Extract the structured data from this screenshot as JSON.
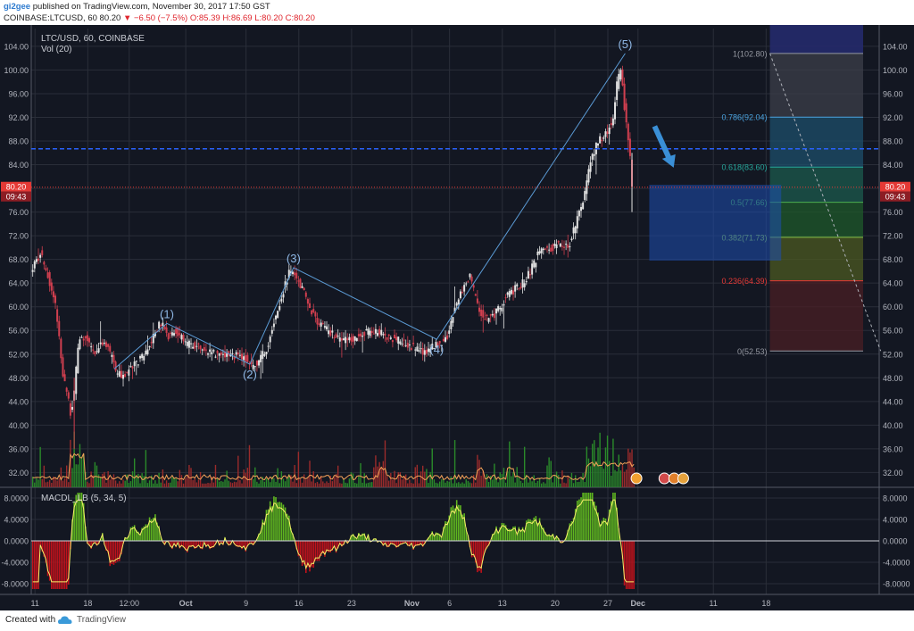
{
  "header": {
    "user": "gi2gee",
    "published": "published on TradingView.com, November 30, 2017 17:50 GST",
    "symbol": "COINBASE:LTCUSD, 60",
    "last": "80.20",
    "change": "−6.50 (−7.5%)",
    "o": "O:85.39",
    "h": "H:86.69",
    "l": "L:80.20",
    "c": "C:80.20"
  },
  "footer": {
    "created_with": "Created with",
    "brand": "TradingView"
  },
  "colors": {
    "bg": "#131722",
    "grid": "#2a2e39",
    "up": "#e3e3e3",
    "down": "#d13f4f",
    "vol_up": "#2a8a2a",
    "vol_down": "#9b2b2b",
    "wave": "#5b9bd5",
    "macd_up": "#5fb61f",
    "macd_down": "#c0121b",
    "macd_line": "#f7f06a",
    "resistance": "#2962ff",
    "price_line": "#e53935"
  },
  "chart_data": {
    "type": "candlestick",
    "title": "LTC/USD, 60, COINBASE",
    "indicator_volume": "Vol (20)",
    "indicator_macd": "MACDL_LB (5, 34, 5)",
    "x_tick_labels": [
      "11",
      "18",
      "12:00",
      "Oct",
      "9",
      "16",
      "23",
      "Nov",
      "6",
      "13",
      "20",
      "27",
      "Dec",
      "11",
      "18"
    ],
    "x_tick_days": [
      11,
      18,
      23.5,
      31,
      39,
      46,
      53,
      61,
      66,
      73,
      80,
      87,
      91,
      101,
      108
    ],
    "x_range_days": [
      10.5,
      123
    ],
    "y_ticks": [
      32,
      36,
      40,
      44,
      48,
      52,
      56,
      60,
      64,
      68,
      72,
      76,
      80,
      84,
      88,
      92,
      96,
      100,
      104
    ],
    "y_tick_labels": [
      "32.00",
      "36.00",
      "40.00",
      "44.00",
      "48.00",
      "52.00",
      "56.00",
      "60.00",
      "64.00",
      "68.00",
      "72.00",
      "76.00",
      "80.00",
      "84.00",
      "88.00",
      "92.00",
      "96.00",
      "100.00",
      "104.00"
    ],
    "ylim": [
      29.5,
      107
    ],
    "macd_ticks": [
      8,
      4,
      0,
      -4,
      -8
    ],
    "macd_tick_labels": [
      "8.0000",
      "4.0000",
      "0.0000",
      "-4.0000",
      "-8.0000"
    ],
    "macd_ylim": [
      -10,
      10
    ],
    "price_path": [
      [
        10.5,
        66
      ],
      [
        12,
        69
      ],
      [
        13,
        65
      ],
      [
        14,
        60
      ],
      [
        15,
        48
      ],
      [
        16,
        42
      ],
      [
        16.5,
        46
      ],
      [
        17,
        54
      ],
      [
        18,
        55
      ],
      [
        19,
        52
      ],
      [
        20,
        54
      ],
      [
        21,
        53
      ],
      [
        22,
        49
      ],
      [
        23,
        48
      ],
      [
        24,
        50
      ],
      [
        26,
        52
      ],
      [
        27,
        55
      ],
      [
        28,
        57.5
      ],
      [
        29,
        55
      ],
      [
        30,
        56
      ],
      [
        31,
        54
      ],
      [
        33,
        53
      ],
      [
        35,
        52
      ],
      [
        37,
        52
      ],
      [
        39,
        51.5
      ],
      [
        40,
        50
      ],
      [
        41,
        51
      ],
      [
        42,
        53
      ],
      [
        43,
        58
      ],
      [
        44,
        62
      ],
      [
        45,
        66
      ],
      [
        46,
        65
      ],
      [
        47,
        62
      ],
      [
        48,
        59
      ],
      [
        49,
        57
      ],
      [
        50,
        56
      ],
      [
        52,
        54
      ],
      [
        54,
        55
      ],
      [
        56,
        56
      ],
      [
        58,
        55
      ],
      [
        60,
        54
      ],
      [
        62,
        53
      ],
      [
        63,
        52
      ],
      [
        64,
        53.5
      ],
      [
        65,
        54
      ],
      [
        66,
        55
      ],
      [
        67,
        60
      ],
      [
        68,
        63
      ],
      [
        69,
        65
      ],
      [
        70,
        60
      ],
      [
        71,
        58
      ],
      [
        72,
        58.5
      ],
      [
        73,
        60
      ],
      [
        74,
        62
      ],
      [
        75,
        63
      ],
      [
        76,
        64
      ],
      [
        77,
        66
      ],
      [
        78,
        69
      ],
      [
        79,
        70
      ],
      [
        80,
        70
      ],
      [
        81,
        71
      ],
      [
        82,
        70
      ],
      [
        83,
        74
      ],
      [
        84,
        78
      ],
      [
        85,
        85
      ],
      [
        86,
        88
      ],
      [
        87,
        89
      ],
      [
        88,
        92
      ],
      [
        88.5,
        98
      ],
      [
        89,
        100
      ],
      [
        89.5,
        93
      ],
      [
        90,
        88
      ],
      [
        90.5,
        80.2
      ]
    ],
    "wave_labels": [
      {
        "label": "(1)",
        "x": 28.5,
        "y": 57.2
      },
      {
        "label": "(2)",
        "x": 39.5,
        "y": 50.3
      },
      {
        "label": "(3)",
        "x": 45.3,
        "y": 66.6
      },
      {
        "label": "(4)",
        "x": 64.3,
        "y": 54.5
      },
      {
        "label": "(5)",
        "x": 89.3,
        "y": 102.8
      }
    ],
    "wave_points": [
      [
        21.5,
        49.5
      ],
      [
        28.5,
        57.2
      ],
      [
        39.5,
        50.3
      ],
      [
        45.3,
        66.6
      ],
      [
        64.3,
        54.5
      ],
      [
        89.3,
        102.8
      ]
    ],
    "fib_levels": [
      {
        "ratio": "1",
        "value": 102.8,
        "label": "1(102.80)",
        "color": "#9598a1"
      },
      {
        "ratio": "0.786",
        "value": 92.04,
        "label": "0.786(92.04)",
        "color": "#4aa3df"
      },
      {
        "ratio": "0.618",
        "value": 83.6,
        "label": "0.618(83.60)",
        "color": "#26a69a"
      },
      {
        "ratio": "0.5",
        "value": 77.66,
        "label": "0.5(77.66)",
        "color": "#4caf50"
      },
      {
        "ratio": "0.382",
        "value": 71.73,
        "label": "0.382(71.73)",
        "color": "#8bc34a"
      },
      {
        "ratio": "0.236",
        "value": 64.39,
        "label": "0.236(64.39)",
        "color": "#e53935"
      },
      {
        "ratio": "0",
        "value": 52.53,
        "label": "0(52.53)",
        "color": "#9598a1"
      }
    ],
    "fib_x_days": [
      108.5,
      124.5
    ],
    "fib_trend": [
      [
        108.5,
        102.8
      ],
      [
        123.2,
        52.53
      ]
    ],
    "target_box": {
      "x_days": [
        92.5,
        110
      ],
      "y": [
        67.8,
        80.6
      ]
    },
    "resistance_level": 86.69,
    "last_price": 80.2,
    "price_badge": "80.20",
    "timer_badge": "09:43",
    "arrow": {
      "from": [
        93.2,
        90.5
      ],
      "to": [
        95.5,
        83.8
      ]
    }
  }
}
